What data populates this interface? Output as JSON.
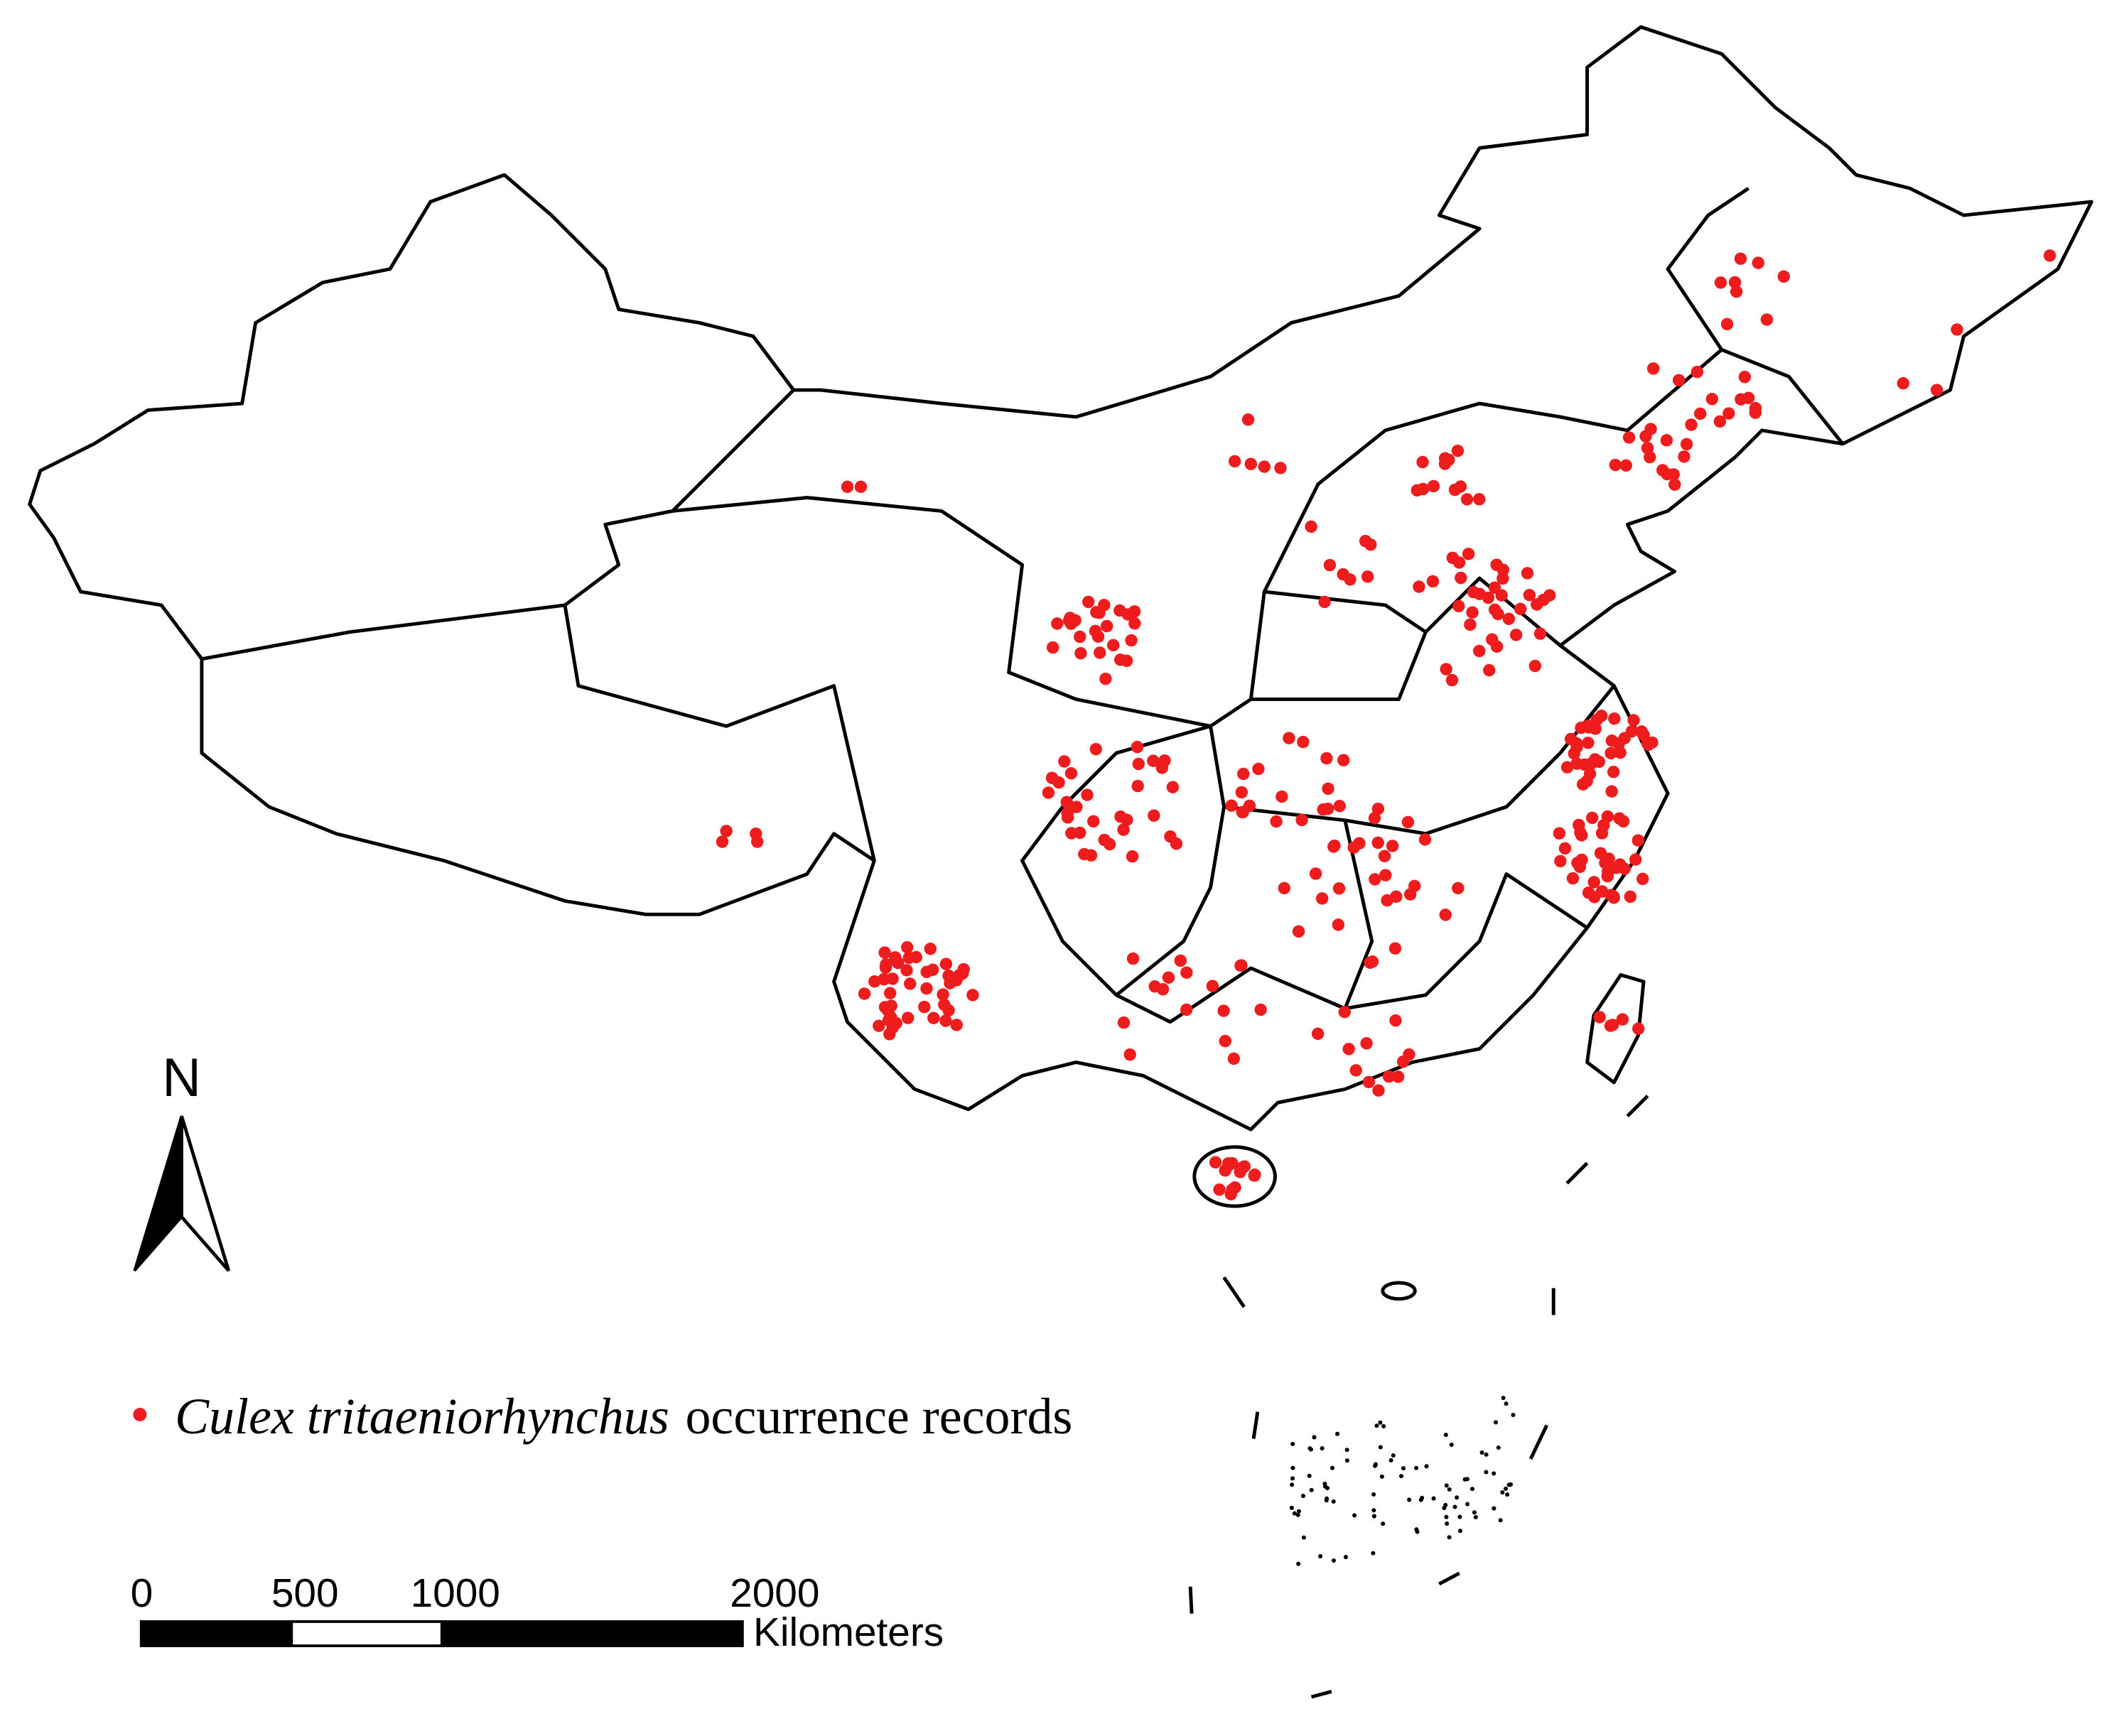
{
  "north": "N",
  "legend": {
    "species": "Culex tritaeniorhynchus",
    "label": "occurrence records"
  },
  "scale_bar": {
    "ticks": [
      0,
      500,
      1000,
      2000
    ],
    "unit": "Kilometers"
  }
}
